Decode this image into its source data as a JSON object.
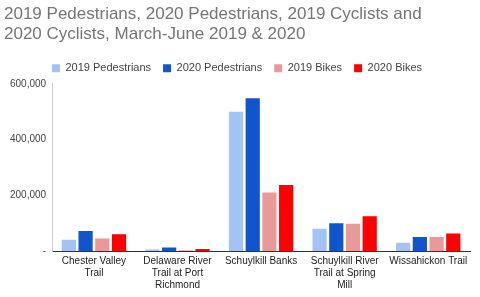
{
  "chart_data": {
    "type": "bar",
    "title": "2019 Pedestrians, 2020 Pedestrians, 2019 Cyclists and 2020 Cyclists, March-June 2019 & 2020",
    "categories": [
      "Chester Valley Trail",
      "Delaware River Trail at Port Richmond",
      "Schuylkill Banks",
      "Schuylkill River Trail at Spring Mill",
      "Wissahickon Trail"
    ],
    "series": [
      {
        "name": "2019 Pedestrians",
        "color": "#a4c2f4",
        "values": [
          40000,
          5000,
          500000,
          80000,
          30000
        ]
      },
      {
        "name": "2020 Pedestrians",
        "color": "#1155cc",
        "values": [
          72000,
          13000,
          548000,
          100000,
          50000
        ]
      },
      {
        "name": "2019 Bikes",
        "color": "#ea9999",
        "values": [
          45000,
          3000,
          210000,
          98000,
          50000
        ]
      },
      {
        "name": "2020 Bikes",
        "color": "#ff0000",
        "values": [
          60000,
          7000,
          237000,
          125000,
          63000
        ]
      }
    ],
    "ylim": [
      0,
      600000
    ],
    "yticks": [
      {
        "value": 0,
        "label": "-"
      },
      {
        "value": 200000,
        "label": "200,000"
      },
      {
        "value": 400000,
        "label": "400,000"
      },
      {
        "value": 600000,
        "label": "600,000"
      }
    ],
    "grid": false,
    "legend": "top"
  }
}
